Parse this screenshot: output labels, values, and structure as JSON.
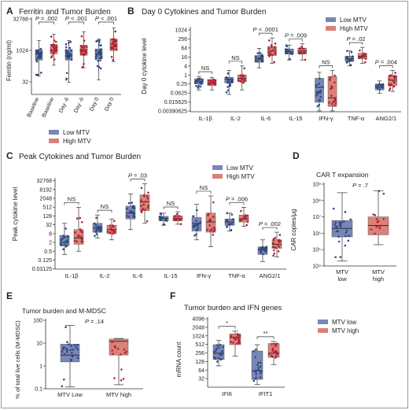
{
  "colors": {
    "low": "#7a86b8",
    "high": "#d98279",
    "low_dot": "#2e4a7e",
    "high_dot": "#b32236",
    "axis": "#333333"
  },
  "chart_data": [
    {
      "id": "A",
      "type": "box",
      "log_scale": true,
      "panel_label": "A",
      "title": "Ferritin and Tumor Burden",
      "ylabel": "Ferritin (ng/ml)",
      "ylim": [
        8,
        32768
      ],
      "yticks": [
        "32",
        "1024",
        "32768"
      ],
      "categories": [
        "Baseline",
        "Baseline",
        "Day -6",
        "Day -6",
        "Day 0",
        "Day 0"
      ],
      "groups": [
        "low",
        "high",
        "low",
        "high",
        "low",
        "high"
      ],
      "boxes": [
        {
          "q1": 350,
          "median": 700,
          "q3": 1100,
          "min": 60,
          "max": 3000
        },
        {
          "q1": 700,
          "median": 1000,
          "q3": 2000,
          "min": 200,
          "max": 6000
        },
        {
          "q1": 350,
          "median": 600,
          "q3": 1100,
          "min": 30,
          "max": 3000
        },
        {
          "q1": 600,
          "median": 1100,
          "q3": 1800,
          "min": 150,
          "max": 8000
        },
        {
          "q1": 400,
          "median": 700,
          "q3": 1200,
          "min": 40,
          "max": 3500
        },
        {
          "q1": 1000,
          "median": 2000,
          "q3": 3600,
          "min": 300,
          "max": 12000
        }
      ],
      "pvalues": [
        {
          "from": 0,
          "to": 1,
          "label": "P = .002"
        },
        {
          "from": 2,
          "to": 3,
          "label": "P < .001"
        },
        {
          "from": 4,
          "to": 5,
          "label": "P < .001"
        }
      ]
    },
    {
      "id": "B",
      "type": "box",
      "log_scale": true,
      "panel_label": "B",
      "title": "Day 0 Cytokines and Tumor Burden",
      "ylabel": "Day 0 cytokine level",
      "ylim": [
        0.0035,
        1300
      ],
      "yticks": [
        "1024",
        "256",
        "64",
        "16",
        "4",
        "1",
        "0.25",
        "0.0625",
        "0.015625",
        "0.00390625"
      ],
      "categories": [
        "IL-1β",
        "IL-2",
        "IL-6",
        "IL-15",
        "IFN-γ",
        "TNF-α",
        "ANG2/1"
      ],
      "legend": [
        "Low MTV",
        "High MTV"
      ],
      "boxes": [
        [
          {
            "q1": 0.25,
            "median": 0.35,
            "q3": 0.55,
            "min": 0.1,
            "max": 0.8
          },
          {
            "q1": 0.2,
            "median": 0.3,
            "q3": 0.5,
            "min": 0.1,
            "max": 0.7
          }
        ],
        [
          {
            "q1": 0.3,
            "median": 0.5,
            "q3": 0.7,
            "min": 0.05,
            "max": 2
          },
          {
            "q1": 0.35,
            "median": 0.6,
            "q3": 1.0,
            "min": 0.1,
            "max": 4
          }
        ],
        [
          {
            "q1": 7,
            "median": 12,
            "q3": 20,
            "min": 3,
            "max": 60
          },
          {
            "q1": 20,
            "median": 40,
            "q3": 80,
            "min": 6,
            "max": 300
          }
        ],
        [
          {
            "q1": 25,
            "median": 35,
            "q3": 55,
            "min": 10,
            "max": 100
          },
          {
            "q1": 25,
            "median": 40,
            "q3": 60,
            "min": 10,
            "max": 120
          }
        ],
        [
          {
            "q1": 0.015,
            "median": 0.15,
            "q3": 0.6,
            "min": 0.004,
            "max": 1.5
          },
          {
            "q1": 0.008,
            "median": 0.03,
            "q3": 0.8,
            "min": 0.004,
            "max": 2
          }
        ],
        [
          {
            "q1": 8,
            "median": 12,
            "q3": 18,
            "min": 4,
            "max": 40
          },
          {
            "q1": 12,
            "median": 18,
            "q3": 28,
            "min": 6,
            "max": 70
          }
        ],
        [
          {
            "q1": 0.1,
            "median": 0.15,
            "q3": 0.25,
            "min": 0.06,
            "max": 0.4
          },
          {
            "q1": 0.2,
            "median": 0.45,
            "q3": 0.9,
            "min": 0.08,
            "max": 2
          }
        ]
      ],
      "pvalues": [
        "NS",
        "NS",
        "P < .0001",
        "P = .009",
        "NS",
        "P = .02",
        "P = .004"
      ]
    },
    {
      "id": "C",
      "type": "box",
      "log_scale": true,
      "panel_label": "C",
      "title": "Peak Cytokines and Tumor Burden",
      "ylabel": "Peak cytokine level",
      "ylim": [
        0.03,
        40000
      ],
      "yticks": [
        "32768",
        "8192",
        "2048",
        "512",
        "128",
        "32",
        "8",
        "2",
        "0.5",
        "0.125",
        "0.03125"
      ],
      "categories": [
        "IL-1β",
        "IL-2",
        "IL-6",
        "IL-15",
        "IFN-γ",
        "TNF-α",
        "ANG2/1"
      ],
      "legend": [
        "Low MTV",
        "High MTV"
      ],
      "boxes": [
        [
          {
            "q1": 1.2,
            "median": 2,
            "q3": 6,
            "min": 0.3,
            "max": 40
          },
          {
            "q1": 1.5,
            "median": 4,
            "q3": 15,
            "min": 0.5,
            "max": 500
          }
        ],
        [
          {
            "q1": 10,
            "median": 20,
            "q3": 40,
            "min": 4,
            "max": 150
          },
          {
            "q1": 8,
            "median": 15,
            "q3": 30,
            "min": 3,
            "max": 80
          }
        ],
        [
          {
            "q1": 80,
            "median": 200,
            "q3": 600,
            "min": 15,
            "max": 4000
          },
          {
            "q1": 300,
            "median": 1200,
            "q3": 3500,
            "min": 40,
            "max": 20000
          }
        ],
        [
          {
            "q1": 60,
            "median": 90,
            "q3": 120,
            "min": 30,
            "max": 200
          },
          {
            "q1": 60,
            "median": 90,
            "q3": 130,
            "min": 35,
            "max": 250
          }
        ],
        [
          {
            "q1": 12,
            "median": 40,
            "q3": 100,
            "min": 3,
            "max": 800
          },
          {
            "q1": 10,
            "median": 50,
            "q3": 200,
            "min": 1,
            "max": 3000
          }
        ],
        [
          {
            "q1": 30,
            "median": 50,
            "q3": 80,
            "min": 12,
            "max": 200
          },
          {
            "q1": 50,
            "median": 80,
            "q3": 150,
            "min": 25,
            "max": 500
          }
        ],
        [
          {
            "q1": 0.3,
            "median": 0.6,
            "q3": 1.0,
            "min": 0.1,
            "max": 3
          },
          {
            "q1": 0.8,
            "median": 1.5,
            "q3": 3,
            "min": 0.2,
            "max": 10
          }
        ]
      ],
      "pvalues": [
        "NS",
        "NS",
        "P = .03",
        "NS",
        "NS",
        "P = .006",
        "P = .002"
      ]
    },
    {
      "id": "D",
      "type": "box",
      "log_scale": true,
      "panel_label": "D",
      "title": "CAR T expansion",
      "ylabel": "CAR copies/μg",
      "ylim": [
        10000,
        1000000000
      ],
      "yticks": [
        "10⁹",
        "10⁸",
        "10⁷",
        "10⁶",
        "10⁵",
        "10⁴"
      ],
      "categories": [
        "MTV\nlow",
        "MTV\nhigh"
      ],
      "boxes": [
        {
          "q1": 600000,
          "median": 2000000,
          "q3": 6000000,
          "min": 20000,
          "max": 300000000
        },
        {
          "q1": 800000,
          "median": 3000000,
          "q3": 10000000,
          "min": 200000,
          "max": 400000000
        }
      ],
      "pvalues": [
        "P = .7"
      ]
    },
    {
      "id": "E",
      "type": "box",
      "log_scale": true,
      "panel_label": "E",
      "title": "Tumor burden and M-MDSC",
      "ylabel": "% of total live cells (M-MDSC)",
      "ylim": [
        0.1,
        100
      ],
      "yticks": [
        "100",
        "10",
        "1",
        "0.1"
      ],
      "categories": [
        "MTV Low",
        "MTV high"
      ],
      "boxes": [
        {
          "q1": 1.5,
          "median": 3,
          "q3": 9,
          "min": 0.12,
          "max": 60
        },
        {
          "q1": 3,
          "median": 12,
          "q3": 15,
          "min": 0.15,
          "max": 16
        }
      ],
      "pvalues": [
        "P = .14"
      ]
    },
    {
      "id": "F",
      "type": "box",
      "log_scale": true,
      "panel_label": "F",
      "title": "Tumor burden and IFN genes",
      "ylabel": "mRNA count",
      "ylim": [
        16,
        4096
      ],
      "yticks": [
        "4096",
        "2048",
        "1024",
        "512",
        "256",
        "128",
        "64",
        "32"
      ],
      "categories": [
        "IFI6",
        "IFIT1"
      ],
      "legend": [
        "MTV low",
        "MTV high"
      ],
      "boxes": [
        [
          {
            "q1": 150,
            "median": 250,
            "q3": 500,
            "min": 90,
            "max": 700
          },
          {
            "q1": 500,
            "median": 900,
            "q3": 1200,
            "min": 200,
            "max": 1500
          }
        ],
        [
          {
            "q1": 30,
            "median": 60,
            "q3": 300,
            "min": 20,
            "max": 500
          },
          {
            "q1": 180,
            "median": 250,
            "q3": 550,
            "min": 100,
            "max": 650
          }
        ]
      ],
      "pvalues": [
        "*",
        "**"
      ]
    }
  ]
}
